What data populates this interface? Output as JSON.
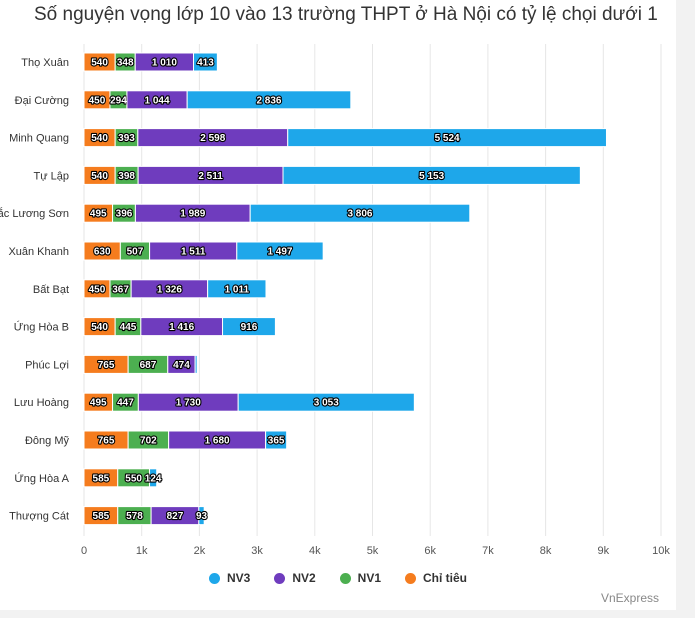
{
  "chart_data": {
    "type": "bar",
    "orientation": "horizontal",
    "stacked": true,
    "title": "Số nguyện vọng lớp 10 vào 13 trường THPT ở Hà Nội có tỷ lệ chọi dưới 1",
    "categories": [
      "Thọ Xuân",
      "Đại Cường",
      "Minh Quang",
      "Tự Lập",
      "Bắc Lương Sơn",
      "Xuân Khanh",
      "Bất Bạt",
      "Ứng Hòa B",
      "Phúc Lợi",
      "Lưu Hoàng",
      "Đông Mỹ",
      "Ứng Hòa A",
      "Thượng Cát"
    ],
    "series": [
      {
        "name": "Chỉ tiêu",
        "color": "#f57c1e",
        "values": [
          540,
          450,
          540,
          540,
          495,
          630,
          450,
          540,
          765,
          495,
          765,
          585,
          585
        ],
        "labels": [
          "540",
          "450",
          "540",
          "540",
          "495",
          "630",
          "450",
          "540",
          "765",
          "495",
          "765",
          "585",
          "585"
        ]
      },
      {
        "name": "NV1",
        "color": "#4caf50",
        "values": [
          348,
          294,
          393,
          398,
          396,
          507,
          367,
          445,
          687,
          447,
          702,
          550,
          578
        ],
        "labels": [
          "348",
          "294",
          "393",
          "398",
          "396",
          "507",
          "367",
          "445",
          "687",
          "447",
          "702",
          "550",
          "578"
        ]
      },
      {
        "name": "NV2",
        "color": "#6f3cbe",
        "values": [
          1010,
          1044,
          2598,
          2511,
          1989,
          1511,
          1326,
          1416,
          474,
          1730,
          1680,
          1,
          827
        ],
        "labels": [
          "1 010",
          "1 044",
          "2 598",
          "2 511",
          "1 989",
          "1 511",
          "1 326",
          "1 416",
          "474",
          "1 730",
          "1 680",
          "1",
          "827"
        ]
      },
      {
        "name": "NV3",
        "color": "#1ea7ea",
        "values": [
          413,
          2836,
          5524,
          5153,
          3806,
          1497,
          1011,
          916,
          35,
          3053,
          365,
          124,
          93
        ],
        "labels": [
          "413",
          "2 836",
          "5 524",
          "5 153",
          "3 806",
          "1 497",
          "1 011",
          "916",
          "",
          "3 053",
          "365",
          "124",
          "93"
        ]
      }
    ],
    "xlim": [
      0,
      10000
    ],
    "x_ticks": [
      0,
      1000,
      2000,
      3000,
      4000,
      5000,
      6000,
      7000,
      8000,
      9000,
      10000
    ],
    "x_tick_labels": [
      "0",
      "1k",
      "2k",
      "3k",
      "4k",
      "5k",
      "6k",
      "7k",
      "8k",
      "9k",
      "10k"
    ],
    "legend_order": [
      "NV3",
      "NV2",
      "NV1",
      "Chỉ tiêu"
    ],
    "legend_position": "bottom",
    "grid": true
  },
  "credit": "VnExpress"
}
